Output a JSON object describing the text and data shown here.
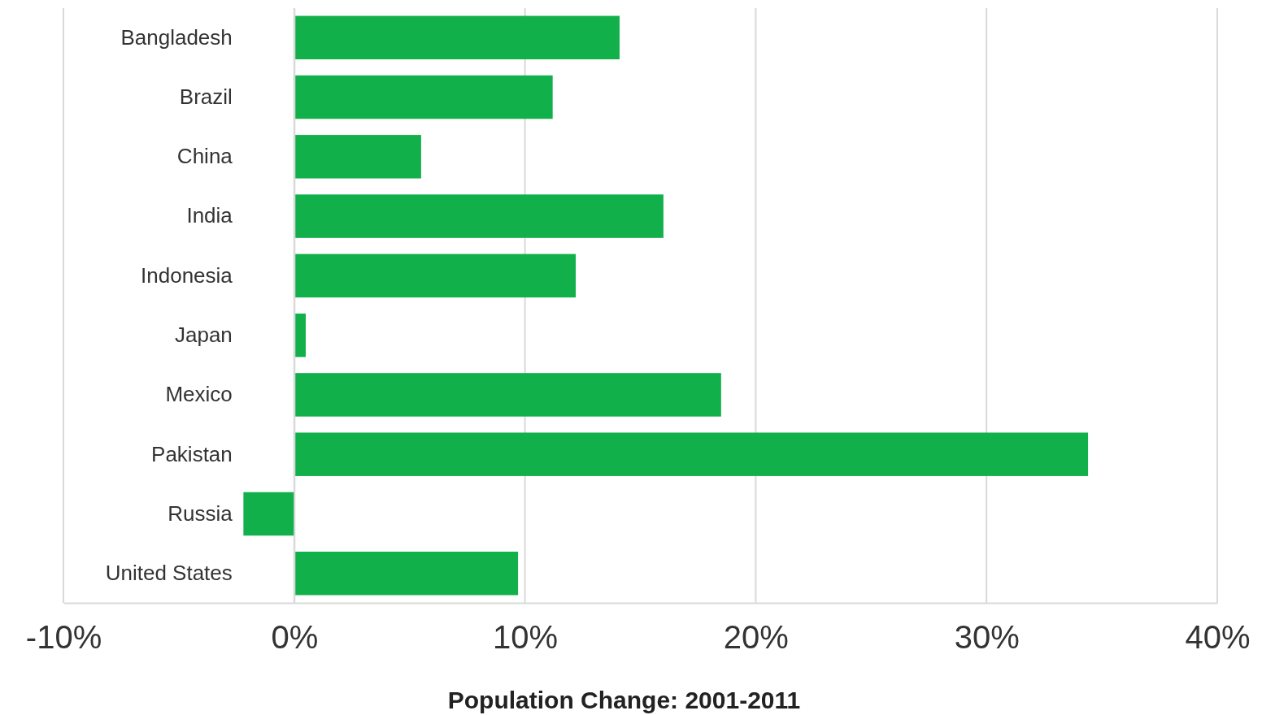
{
  "chart_data": {
    "type": "bar",
    "orientation": "horizontal",
    "xlabel": "Population Change: 2001-2011",
    "categories": [
      "Bangladesh",
      "Brazil",
      "China",
      "India",
      "Indonesia",
      "Japan",
      "Mexico",
      "Pakistan",
      "Russia",
      "United States"
    ],
    "values": [
      14.1,
      11.2,
      5.5,
      16.0,
      12.2,
      0.5,
      18.5,
      34.4,
      -2.2,
      9.7
    ],
    "color": "#12b04a",
    "xlim": [
      -10,
      40
    ],
    "xticks": [
      {
        "value": -10,
        "label": "-10%"
      },
      {
        "value": 0,
        "label": "0%"
      },
      {
        "value": 10,
        "label": "10%"
      },
      {
        "value": 20,
        "label": "20%"
      },
      {
        "value": 30,
        "label": "30%"
      },
      {
        "value": 40,
        "label": "40%"
      }
    ],
    "grid": "x"
  }
}
